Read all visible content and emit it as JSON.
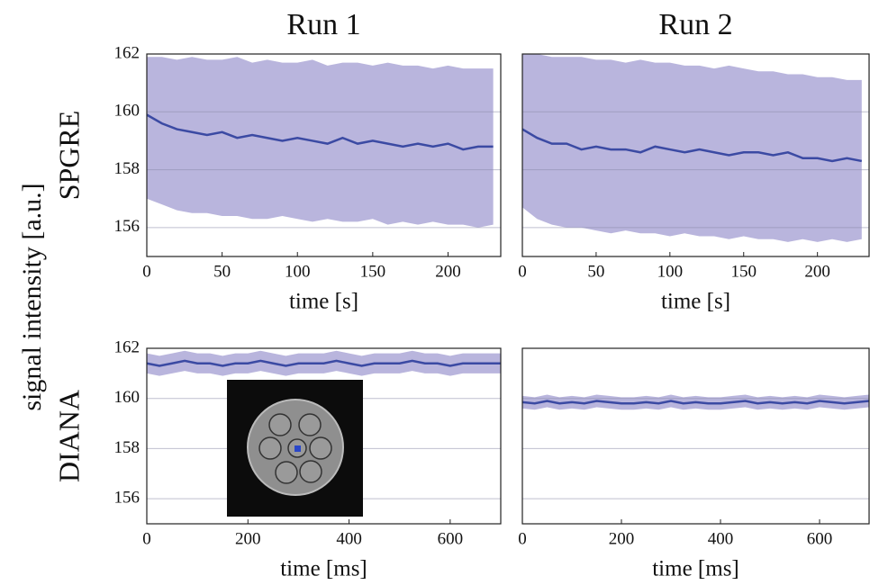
{
  "ylabel": "signal intensity [a.u.]",
  "chart_data": [
    {
      "type": "line",
      "title": "Run 1",
      "row_label": "SPGRE",
      "xlabel": "time [s]",
      "xlim": [
        0,
        235
      ],
      "xticks": [
        0,
        50,
        100,
        150,
        200
      ],
      "ylim": [
        155,
        162
      ],
      "yticks": [
        156,
        158,
        160,
        162
      ],
      "ytick_labels": true,
      "grid": true,
      "color": "#3b4aa3",
      "band_color": "#b9b5dd",
      "x": [
        0,
        10,
        20,
        30,
        40,
        50,
        60,
        70,
        80,
        90,
        100,
        110,
        120,
        130,
        140,
        150,
        160,
        170,
        180,
        190,
        200,
        210,
        220,
        230
      ],
      "values": [
        159.9,
        159.6,
        159.4,
        159.3,
        159.2,
        159.3,
        159.1,
        159.2,
        159.1,
        159.0,
        159.1,
        159.0,
        158.9,
        159.1,
        158.9,
        159.0,
        158.9,
        158.8,
        158.9,
        158.8,
        158.9,
        158.7,
        158.8,
        158.8
      ],
      "lower": [
        157.0,
        156.8,
        156.6,
        156.5,
        156.5,
        156.4,
        156.4,
        156.3,
        156.3,
        156.4,
        156.3,
        156.2,
        156.3,
        156.2,
        156.2,
        156.3,
        156.1,
        156.2,
        156.1,
        156.2,
        156.1,
        156.1,
        156.0,
        156.1
      ],
      "upper": [
        161.9,
        161.9,
        161.8,
        161.9,
        161.8,
        161.8,
        161.9,
        161.7,
        161.8,
        161.7,
        161.7,
        161.8,
        161.6,
        161.7,
        161.7,
        161.6,
        161.7,
        161.6,
        161.6,
        161.5,
        161.6,
        161.5,
        161.5,
        161.5
      ]
    },
    {
      "type": "line",
      "title": "Run 2",
      "xlabel": "time [s]",
      "xlim": [
        0,
        235
      ],
      "xticks": [
        0,
        50,
        100,
        150,
        200
      ],
      "ylim": [
        155,
        162
      ],
      "yticks": [
        156,
        158,
        160,
        162
      ],
      "ytick_labels": false,
      "grid": true,
      "color": "#3b4aa3",
      "band_color": "#b9b5dd",
      "x": [
        0,
        10,
        20,
        30,
        40,
        50,
        60,
        70,
        80,
        90,
        100,
        110,
        120,
        130,
        140,
        150,
        160,
        170,
        180,
        190,
        200,
        210,
        220,
        230
      ],
      "values": [
        159.4,
        159.1,
        158.9,
        158.9,
        158.7,
        158.8,
        158.7,
        158.7,
        158.6,
        158.8,
        158.7,
        158.6,
        158.7,
        158.6,
        158.5,
        158.6,
        158.6,
        158.5,
        158.6,
        158.4,
        158.4,
        158.3,
        158.4,
        158.3
      ],
      "lower": [
        156.7,
        156.3,
        156.1,
        156.0,
        156.0,
        155.9,
        155.8,
        155.9,
        155.8,
        155.8,
        155.7,
        155.8,
        155.7,
        155.7,
        155.6,
        155.7,
        155.6,
        155.6,
        155.5,
        155.6,
        155.5,
        155.6,
        155.5,
        155.6
      ],
      "upper": [
        162.0,
        162.0,
        161.9,
        161.9,
        161.9,
        161.8,
        161.8,
        161.7,
        161.8,
        161.7,
        161.7,
        161.6,
        161.6,
        161.5,
        161.6,
        161.5,
        161.4,
        161.4,
        161.3,
        161.3,
        161.2,
        161.2,
        161.1,
        161.1
      ]
    },
    {
      "type": "line",
      "row_label": "DIANA",
      "xlabel": "time [ms]",
      "xlim": [
        0,
        700
      ],
      "xticks": [
        0,
        200,
        400,
        600
      ],
      "ylim": [
        155,
        162
      ],
      "yticks": [
        156,
        158,
        160,
        162
      ],
      "ytick_labels": true,
      "grid": true,
      "color": "#3b4aa3",
      "band_color": "#b9b5dd",
      "x": [
        0,
        25,
        50,
        75,
        100,
        125,
        150,
        175,
        200,
        225,
        250,
        275,
        300,
        325,
        350,
        375,
        400,
        425,
        450,
        475,
        500,
        525,
        550,
        575,
        600,
        625,
        650,
        675,
        700
      ],
      "values": [
        161.4,
        161.3,
        161.4,
        161.5,
        161.4,
        161.4,
        161.3,
        161.4,
        161.4,
        161.5,
        161.4,
        161.3,
        161.4,
        161.4,
        161.4,
        161.5,
        161.4,
        161.3,
        161.4,
        161.4,
        161.4,
        161.5,
        161.4,
        161.4,
        161.3,
        161.4,
        161.4,
        161.4,
        161.4
      ],
      "lower": [
        161.0,
        160.9,
        161.0,
        161.1,
        161.0,
        161.0,
        160.9,
        161.0,
        161.0,
        161.1,
        161.0,
        160.9,
        161.0,
        161.0,
        161.0,
        161.1,
        161.0,
        160.9,
        161.0,
        161.0,
        161.0,
        161.1,
        161.0,
        161.0,
        160.9,
        161.0,
        161.0,
        161.0,
        161.0
      ],
      "upper": [
        161.8,
        161.7,
        161.8,
        161.9,
        161.8,
        161.8,
        161.7,
        161.8,
        161.8,
        161.9,
        161.8,
        161.7,
        161.8,
        161.8,
        161.8,
        161.9,
        161.8,
        161.7,
        161.8,
        161.8,
        161.8,
        161.9,
        161.8,
        161.8,
        161.7,
        161.8,
        161.8,
        161.8,
        161.8
      ]
    },
    {
      "type": "line",
      "xlabel": "time [ms]",
      "xlim": [
        0,
        700
      ],
      "xticks": [
        0,
        200,
        400,
        600
      ],
      "ylim": [
        155,
        162
      ],
      "yticks": [
        156,
        158,
        160,
        162
      ],
      "ytick_labels": false,
      "grid": true,
      "color": "#3b4aa3",
      "band_color": "#b9b5dd",
      "x": [
        0,
        25,
        50,
        75,
        100,
        125,
        150,
        175,
        200,
        225,
        250,
        275,
        300,
        325,
        350,
        375,
        400,
        425,
        450,
        475,
        500,
        525,
        550,
        575,
        600,
        625,
        650,
        675,
        700
      ],
      "values": [
        159.85,
        159.8,
        159.9,
        159.8,
        159.85,
        159.8,
        159.9,
        159.85,
        159.8,
        159.8,
        159.85,
        159.8,
        159.9,
        159.8,
        159.85,
        159.8,
        159.8,
        159.85,
        159.9,
        159.8,
        159.85,
        159.8,
        159.85,
        159.8,
        159.9,
        159.85,
        159.8,
        159.85,
        159.9
      ],
      "lower": [
        159.6,
        159.55,
        159.65,
        159.55,
        159.6,
        159.55,
        159.65,
        159.6,
        159.55,
        159.55,
        159.6,
        159.55,
        159.65,
        159.55,
        159.6,
        159.55,
        159.55,
        159.6,
        159.65,
        159.55,
        159.6,
        159.55,
        159.6,
        159.55,
        159.65,
        159.6,
        159.55,
        159.6,
        159.65
      ],
      "upper": [
        160.1,
        160.05,
        160.15,
        160.05,
        160.1,
        160.05,
        160.15,
        160.1,
        160.05,
        160.05,
        160.1,
        160.05,
        160.15,
        160.05,
        160.1,
        160.05,
        160.05,
        160.1,
        160.15,
        160.05,
        160.1,
        160.05,
        160.1,
        160.05,
        160.15,
        160.1,
        160.05,
        160.1,
        160.15
      ]
    }
  ]
}
